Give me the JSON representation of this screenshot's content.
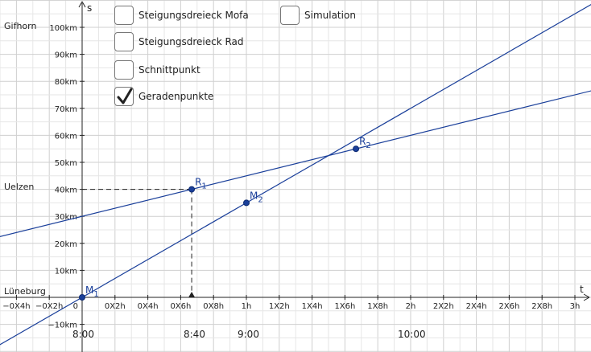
{
  "checkboxes": [
    {
      "label": "Steigungsdreieck Mofa",
      "checked": false
    },
    {
      "label": "Steigungsdreieck Rad",
      "checked": false
    },
    {
      "label": "Schnittpunkt",
      "checked": false
    },
    {
      "label": "Geradenpunkte",
      "checked": true
    },
    {
      "label": "Simulation",
      "checked": false
    }
  ],
  "cities": [
    "Gifhorn",
    "Uelzen",
    "Lüneburg"
  ],
  "times": [
    "8:00",
    "8:40",
    "9:00",
    "10:00"
  ],
  "colors": {
    "line": "#1a3f9a",
    "point": "#1a3f9a",
    "grid": "#d4d4d4",
    "axis": "#222222"
  },
  "chart_data": {
    "type": "line",
    "xlabel": "t",
    "ylabel": "s",
    "xlim": [
      -0.45,
      3.05
    ],
    "ylim": [
      -15,
      108
    ],
    "x_ticks": [
      {
        "v": -0.4,
        "label": "−0X4h"
      },
      {
        "v": -0.2,
        "label": "−0X2h"
      },
      {
        "v": 0,
        "label": "0"
      },
      {
        "v": 0.2,
        "label": "0X2h"
      },
      {
        "v": 0.4,
        "label": "0X4h"
      },
      {
        "v": 0.6,
        "label": "0X6h"
      },
      {
        "v": 0.8,
        "label": "0X8h"
      },
      {
        "v": 1.0,
        "label": "1h"
      },
      {
        "v": 1.2,
        "label": "1X2h"
      },
      {
        "v": 1.4,
        "label": "1X4h"
      },
      {
        "v": 1.6,
        "label": "1X6h"
      },
      {
        "v": 1.8,
        "label": "1X8h"
      },
      {
        "v": 2.0,
        "label": "2h"
      },
      {
        "v": 2.2,
        "label": "2X2h"
      },
      {
        "v": 2.4,
        "label": "2X4h"
      },
      {
        "v": 2.6,
        "label": "2X6h"
      },
      {
        "v": 2.8,
        "label": "2X8h"
      },
      {
        "v": 3.0,
        "label": "3h"
      }
    ],
    "y_ticks": [
      {
        "v": -10,
        "label": "−10km"
      },
      {
        "v": 10,
        "label": "10km"
      },
      {
        "v": 20,
        "label": "20km"
      },
      {
        "v": 30,
        "label": "30km"
      },
      {
        "v": 40,
        "label": "40km"
      },
      {
        "v": 50,
        "label": "50km"
      },
      {
        "v": 60,
        "label": "60km"
      },
      {
        "v": 70,
        "label": "70km"
      },
      {
        "v": 80,
        "label": "80km"
      },
      {
        "v": 90,
        "label": "90km"
      },
      {
        "v": 100,
        "label": "100km"
      }
    ],
    "lines": [
      {
        "slope": 35,
        "intercept": 0
      },
      {
        "slope": 15,
        "intercept": 30
      }
    ],
    "points": [
      {
        "label": "M1",
        "base": "M",
        "sub": "1",
        "x": 0,
        "y": 0
      },
      {
        "label": "M2",
        "base": "M",
        "sub": "2",
        "x": 1,
        "y": 35
      },
      {
        "label": "R1",
        "base": "R",
        "sub": "1",
        "x": 0.667,
        "y": 40
      },
      {
        "label": "R2",
        "base": "R",
        "sub": "2",
        "x": 1.667,
        "y": 55
      }
    ],
    "guide": {
      "x": 0.667,
      "y": 40
    }
  }
}
